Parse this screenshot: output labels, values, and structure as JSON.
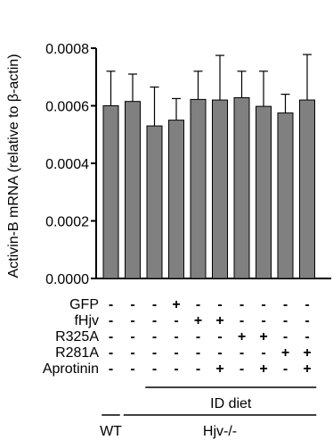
{
  "chart_data": {
    "type": "bar",
    "ylabel": "Activin-B mRNA (relative to β-actin)",
    "ylim": [
      0,
      0.0008
    ],
    "yticks": [
      "0.0000",
      "0.0002",
      "0.0004",
      "0.0006",
      "0.0008"
    ],
    "ytick_values": [
      0,
      0.0002,
      0.0004,
      0.0006,
      0.0008
    ],
    "grid": false,
    "bar_color": "#808080",
    "values": [
      0.0006,
      0.000615,
      0.00053,
      0.00055,
      0.000622,
      0.00062,
      0.000628,
      0.000598,
      0.000575,
      0.00062
    ],
    "errors": [
      0.00012,
      9.5e-05,
      0.000135,
      7.5e-05,
      9.8e-05,
      0.000155,
      9.2e-05,
      0.000122,
      6.5e-05,
      0.000158
    ],
    "conditions": [
      {
        "label": "GFP",
        "marks": [
          "-",
          "-",
          "-",
          "+",
          "-",
          "-",
          "-",
          "-",
          "-",
          "-"
        ]
      },
      {
        "label": "fHjv",
        "marks": [
          "-",
          "-",
          "-",
          "-",
          "+",
          "+",
          "-",
          "-",
          "-",
          "-"
        ]
      },
      {
        "label": "R325A",
        "marks": [
          "-",
          "-",
          "-",
          "-",
          "-",
          "-",
          "+",
          "+",
          "-",
          "-"
        ]
      },
      {
        "label": "R281A",
        "marks": [
          "-",
          "-",
          "-",
          "-",
          "-",
          "-",
          "-",
          "-",
          "+",
          "+"
        ]
      },
      {
        "label": "Aprotinin",
        "marks": [
          "-",
          "-",
          "-",
          "-",
          "-",
          "+",
          "-",
          "+",
          "-",
          "+"
        ]
      }
    ],
    "groups": [
      {
        "label": "ID diet",
        "from": 2,
        "to": 9
      },
      {
        "label": "WT",
        "from": 0,
        "to": 0
      },
      {
        "label": "Hjv-/-",
        "from": 1,
        "to": 9
      }
    ]
  }
}
